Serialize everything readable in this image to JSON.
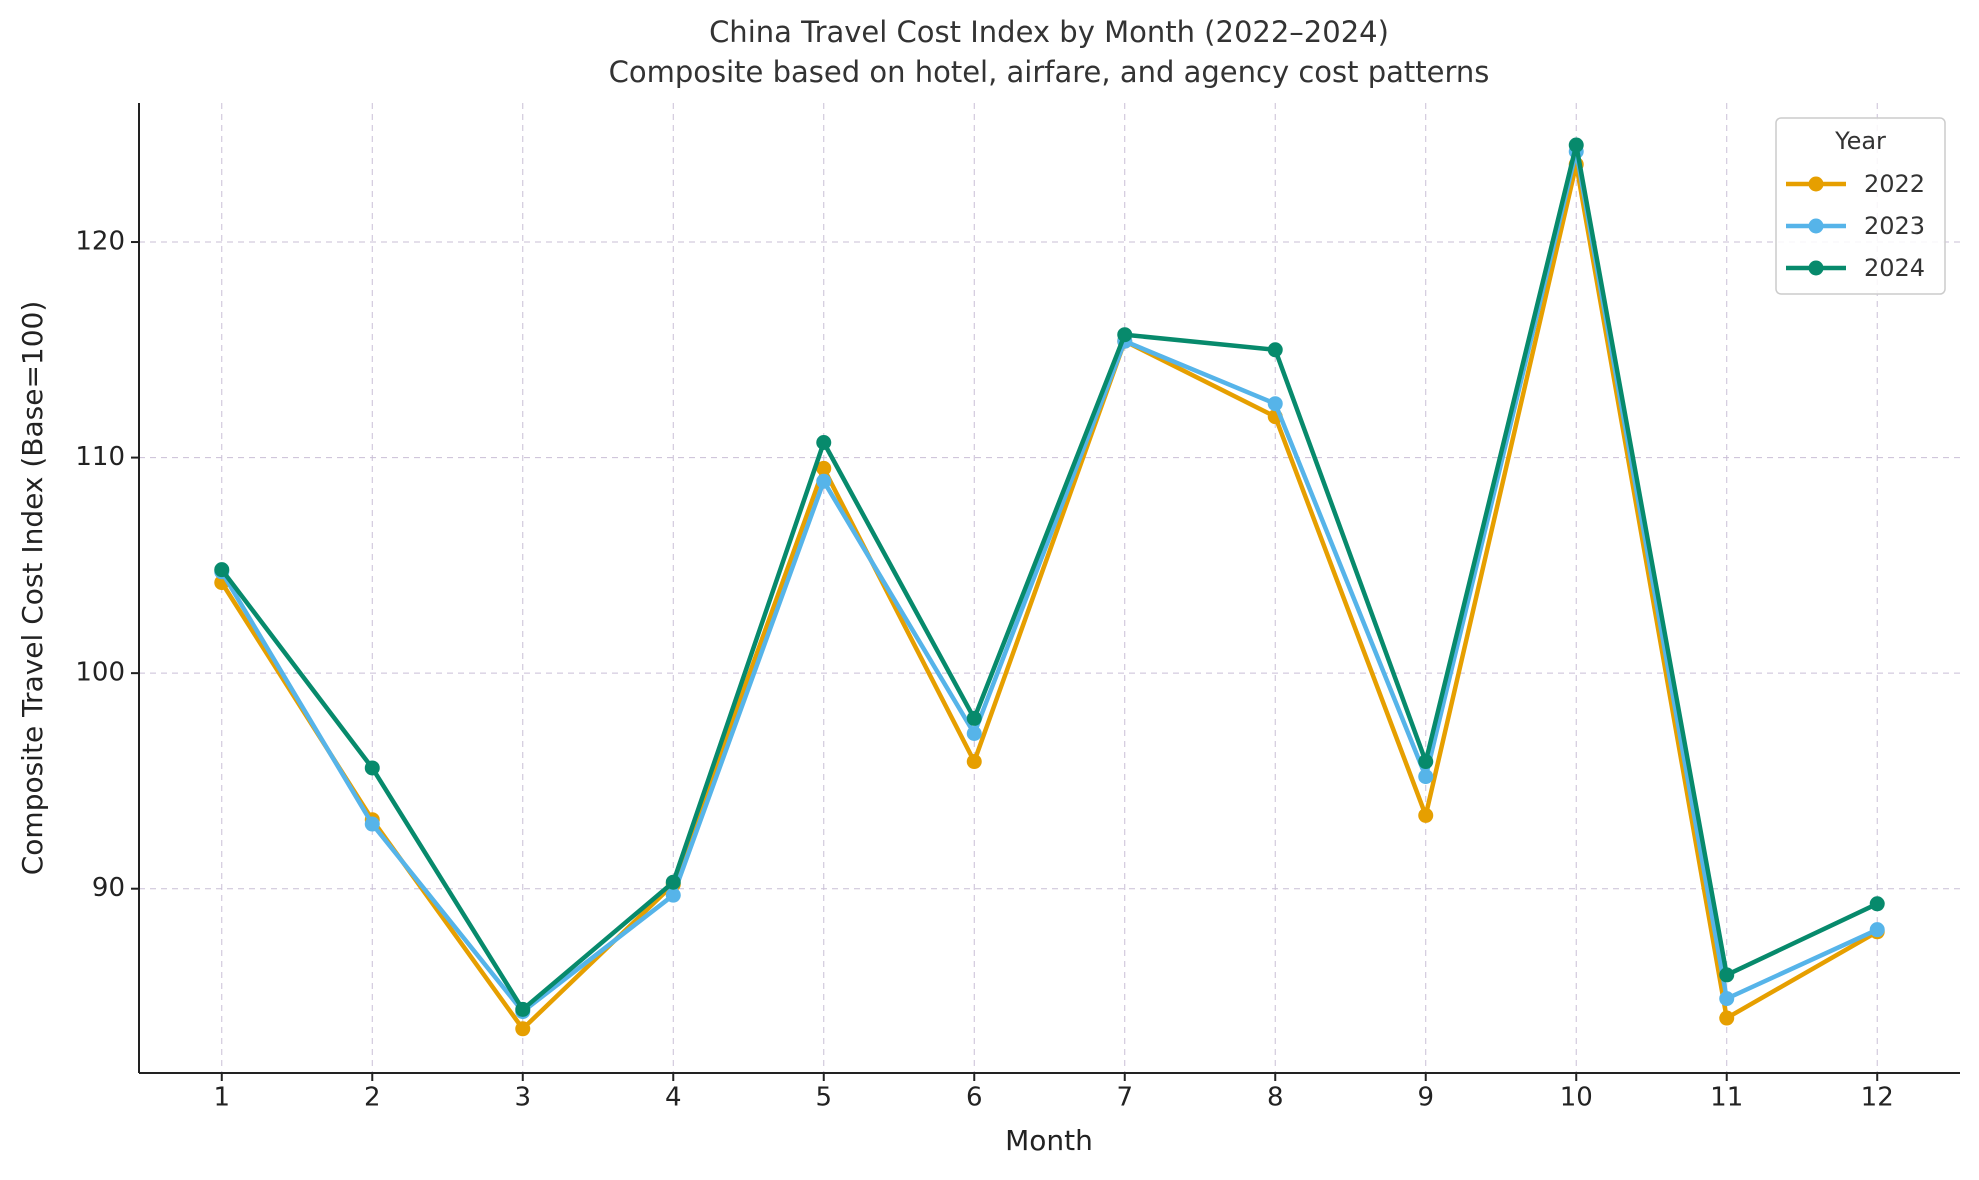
{
  "chart_data": {
    "type": "line",
    "title": "China Travel Cost Index by Month (2022–2024)",
    "subtitle": "Composite based on hotel, airfare, and agency cost patterns",
    "x_label": "Month",
    "y_label": "Composite Travel Cost Index (Base=100)",
    "x": [
      1,
      2,
      3,
      4,
      5,
      6,
      7,
      8,
      9,
      10,
      11,
      12
    ],
    "xlim": [
      0.45,
      12.55
    ],
    "xticks": [
      1,
      2,
      3,
      4,
      5,
      6,
      7,
      8,
      9,
      10,
      11,
      12
    ],
    "ylim": [
      81.45,
      126.45
    ],
    "yticks": [
      90,
      100,
      110,
      120
    ],
    "grid": true,
    "legend_title": "Year",
    "legend_loc": "upper right",
    "series": [
      {
        "name": "2022",
        "color": "#E69F00",
        "values": [
          104.2,
          93.2,
          83.5,
          90.2,
          109.5,
          95.9,
          115.4,
          111.9,
          93.4,
          123.6,
          84.0,
          88.0
        ]
      },
      {
        "name": "2023",
        "color": "#56B4E9",
        "values": [
          104.7,
          93.0,
          84.3,
          89.7,
          108.9,
          97.2,
          115.4,
          112.5,
          95.2,
          124.2,
          84.9,
          88.1
        ]
      },
      {
        "name": "2024",
        "color": "#078A6C",
        "values": [
          104.8,
          95.6,
          84.4,
          90.3,
          110.7,
          97.9,
          115.7,
          115.0,
          95.9,
          124.5,
          86.0,
          89.3
        ]
      }
    ]
  }
}
